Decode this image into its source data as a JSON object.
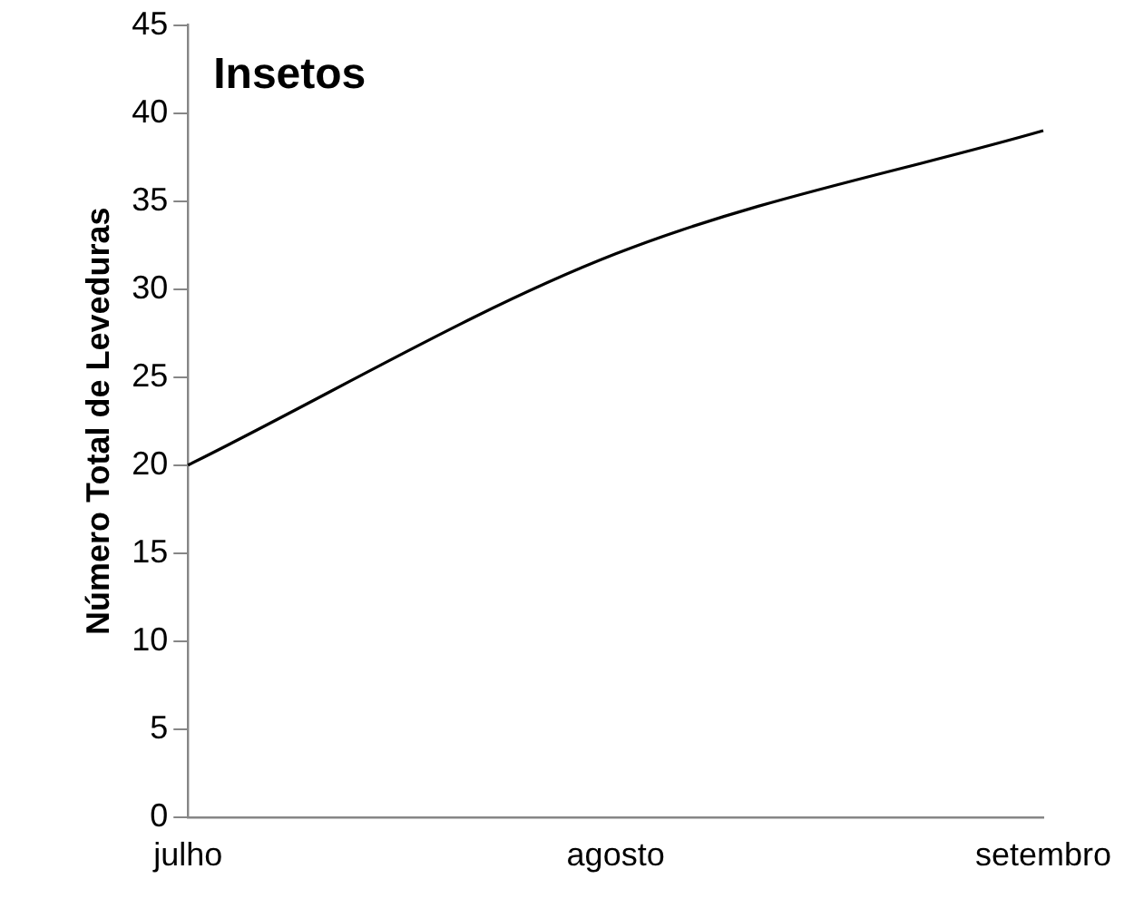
{
  "chart_data": {
    "type": "line",
    "title": "Insetos",
    "ylabel": "Número Total de Leveduras",
    "categories": [
      "julho",
      "agosto",
      "setembro"
    ],
    "series": [
      {
        "color": "#000000",
        "values": [
          20,
          32,
          39
        ]
      }
    ],
    "ylim": [
      0,
      45
    ],
    "yticks": [
      0,
      5,
      10,
      15,
      20,
      25,
      30,
      35,
      40,
      45
    ],
    "grid": false,
    "legend": false,
    "marker": "none",
    "line_style": "solid"
  }
}
